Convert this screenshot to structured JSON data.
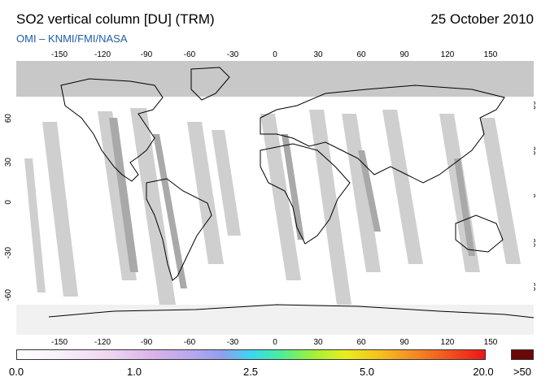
{
  "header": {
    "title": "SO2 vertical column [DU] (TRM)",
    "date": "25 October 2010",
    "credit": "OMI  –  KNMI/FMI/NASA"
  },
  "map": {
    "projection": "equirectangular",
    "lon_ticks": [
      "-150",
      "-120",
      "-90",
      "-60",
      "-30",
      "0",
      "30",
      "60",
      "90",
      "120",
      "150"
    ],
    "lat_ticks": [
      "60",
      "30",
      "0",
      "-30",
      "-60"
    ],
    "no_data_color": "#c8c8c8",
    "swath_color": "#cfcfcf",
    "coast_color": "#000000"
  },
  "colorbar": {
    "labels": [
      "0.0",
      "1.0",
      "2.5",
      "5.0",
      "20.0"
    ],
    "overflow_label": ">50",
    "overflow_color": "#6b0808"
  }
}
